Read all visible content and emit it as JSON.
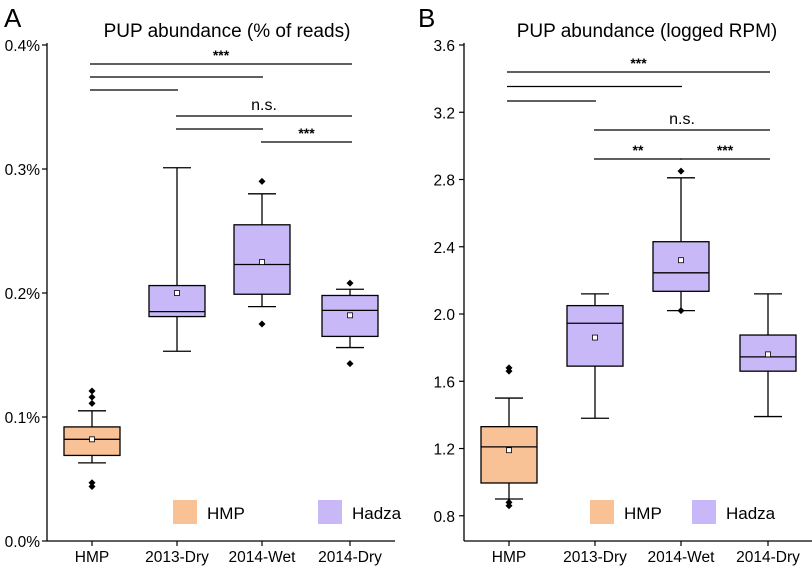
{
  "colors": {
    "hmp": "#f9c196",
    "hadza": "#c9b8f7",
    "line": "#000000"
  },
  "legend": [
    {
      "name": "HMP",
      "color": "#f9c196"
    },
    {
      "name": "Hadza",
      "color": "#c9b8f7"
    }
  ],
  "chart_data": [
    {
      "type": "box",
      "panel_label": "A",
      "title": "PUP abundance (% of reads)",
      "xlabel": "",
      "ylabel": "",
      "categories": [
        "HMP",
        "2013-Dry",
        "2014-Wet",
        "2014-Dry"
      ],
      "ylim": [
        0,
        0.4
      ],
      "yticks": [
        0,
        0.1,
        0.2,
        0.3,
        0.4
      ],
      "ytick_labels": [
        "0.0%",
        "0.1%",
        "0.2%",
        "0.3%",
        "0.4%"
      ],
      "boxes": [
        {
          "category": "HMP",
          "group": "HMP",
          "whisker_low": 0.063,
          "q1": 0.069,
          "median": 0.082,
          "q3": 0.092,
          "whisker_high": 0.105,
          "mean": 0.082,
          "outliers": [
            0.044,
            0.047,
            0.111,
            0.116,
            0.121
          ]
        },
        {
          "category": "2013-Dry",
          "group": "Hadza",
          "whisker_low": 0.153,
          "q1": 0.181,
          "median": 0.185,
          "q3": 0.206,
          "whisker_high": 0.301,
          "mean": 0.2,
          "outliers": []
        },
        {
          "category": "2014-Wet",
          "group": "Hadza",
          "whisker_low": 0.189,
          "q1": 0.199,
          "median": 0.223,
          "q3": 0.255,
          "whisker_high": 0.28,
          "mean": 0.225,
          "outliers": [
            0.175,
            0.29
          ]
        },
        {
          "category": "2014-Dry",
          "group": "Hadza",
          "whisker_low": 0.156,
          "q1": 0.165,
          "median": 0.186,
          "q3": 0.198,
          "whisker_high": 0.203,
          "mean": 0.182,
          "outliers": [
            0.143,
            0.208
          ]
        }
      ],
      "brackets": [
        {
          "from": 0,
          "to": 3,
          "level": 0,
          "label": "***"
        },
        {
          "from": 0,
          "to": 2,
          "level": 1,
          "label": ""
        },
        {
          "from": 0,
          "to": 1,
          "level": 2,
          "label": ""
        },
        {
          "from": 1,
          "to": 3,
          "level": 4,
          "label": "n.s."
        },
        {
          "from": 1,
          "to": 2,
          "level": 5,
          "label": ""
        },
        {
          "from": 2,
          "to": 3,
          "level": 6,
          "label": "***"
        }
      ]
    },
    {
      "type": "box",
      "panel_label": "B",
      "title": "PUP abundance (logged RPM)",
      "xlabel": "",
      "ylabel": "",
      "categories": [
        "HMP",
        "2013-Dry",
        "2014-Wet",
        "2014-Dry"
      ],
      "ylim": [
        0.65,
        3.6
      ],
      "yticks": [
        0.8,
        1.2,
        1.6,
        2.0,
        2.4,
        2.8,
        3.2,
        3.6
      ],
      "ytick_labels": [
        "0.8",
        "1.2",
        "1.6",
        "2.0",
        "2.4",
        "2.8",
        "3.2",
        "3.6"
      ],
      "boxes": [
        {
          "category": "HMP",
          "group": "HMP",
          "whisker_low": 0.9,
          "q1": 0.995,
          "median": 1.21,
          "q3": 1.33,
          "whisker_high": 1.5,
          "mean": 1.19,
          "outliers": [
            0.86,
            0.88,
            1.66,
            1.68
          ]
        },
        {
          "category": "2013-Dry",
          "group": "Hadza",
          "whisker_low": 1.38,
          "q1": 1.69,
          "median": 1.945,
          "q3": 2.05,
          "whisker_high": 2.12,
          "mean": 1.86,
          "outliers": []
        },
        {
          "category": "2014-Wet",
          "group": "Hadza",
          "whisker_low": 2.02,
          "q1": 2.135,
          "median": 2.245,
          "q3": 2.43,
          "whisker_high": 2.81,
          "mean": 2.32,
          "outliers": [
            2.02,
            2.85
          ]
        },
        {
          "category": "2014-Dry",
          "group": "Hadza",
          "whisker_low": 1.39,
          "q1": 1.66,
          "median": 1.745,
          "q3": 1.875,
          "whisker_high": 2.12,
          "mean": 1.76,
          "outliers": []
        }
      ],
      "brackets": [
        {
          "from": 0,
          "to": 3,
          "level": 0,
          "label": "***"
        },
        {
          "from": 0,
          "to": 2,
          "level": 1,
          "label": ""
        },
        {
          "from": 0,
          "to": 1,
          "level": 2,
          "label": ""
        },
        {
          "from": 1,
          "to": 3,
          "level": 4,
          "label": "n.s."
        },
        {
          "from": 1,
          "to": 2,
          "level": 6,
          "label": "**"
        },
        {
          "from": 2,
          "to": 3,
          "level": 6,
          "label": "***"
        }
      ]
    }
  ]
}
